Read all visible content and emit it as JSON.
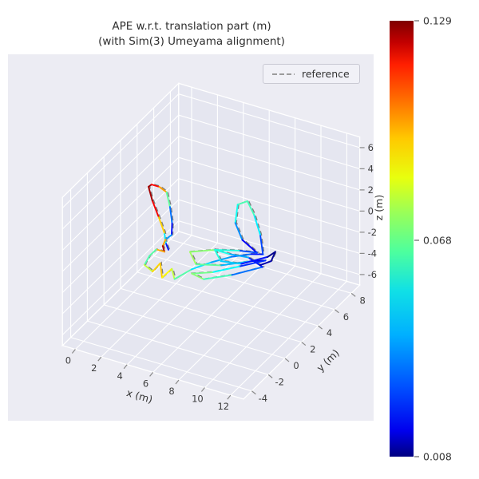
{
  "title": {
    "line1": "APE w.r.t. translation part (m)",
    "line2": "(with Sim(3) Umeyama alignment)"
  },
  "legend": {
    "label": "reference"
  },
  "colorbar": {
    "tick_labels": [
      "0.129",
      "0.068",
      "0.008"
    ],
    "vmin": 0.008,
    "vmax": 0.129,
    "colormap": "jet"
  },
  "style": {
    "axes_bg": "#ececf3",
    "pane_bg": "#e5e6f0",
    "grid_color": "#ffffff",
    "tick_color": "#3d3d3d",
    "reference_color": "#7f7f7f"
  },
  "chart_data": {
    "type": "line",
    "title": "APE w.r.t. translation part (m) (with Sim(3) Umeyama alignment)",
    "legend_position": "upper right",
    "grid": true,
    "view": {
      "elev": 30,
      "azim": -60
    },
    "axes": {
      "x_label": "x (m)",
      "y_label": "y (m)",
      "z_label": "z (m)",
      "x_ticks": [
        0,
        2,
        4,
        6,
        8,
        10,
        12
      ],
      "y_ticks": [
        -4,
        -2,
        0,
        2,
        4,
        6,
        8
      ],
      "z_ticks": [
        6,
        4,
        2,
        0,
        -2,
        -4,
        -6
      ],
      "x_range": [
        -1,
        13
      ],
      "y_range": [
        -5,
        9
      ],
      "z_range": [
        -7,
        7
      ]
    },
    "series": [
      {
        "name": "APE w.r.t. translation part",
        "linestyle": "solid",
        "colored_by": "ape_value",
        "points": [
          [
            3.6,
            0.6,
            -0.6,
            0.02
          ],
          [
            3.2,
            0.9,
            -0.3,
            0.032
          ],
          [
            2.9,
            1.2,
            0.3,
            0.07
          ],
          [
            2.5,
            1.1,
            1.8,
            0.108
          ],
          [
            2.1,
            1.0,
            3.2,
            0.122
          ],
          [
            1.8,
            1.0,
            4.4,
            0.127
          ],
          [
            2.1,
            0.9,
            4.8,
            0.122
          ],
          [
            2.7,
            0.9,
            4.8,
            0.105
          ],
          [
            3.2,
            1.0,
            4.4,
            0.085
          ],
          [
            3.4,
            1.1,
            3.0,
            0.045
          ],
          [
            3.5,
            1.2,
            1.4,
            0.028
          ],
          [
            3.4,
            1.3,
            0.2,
            0.022
          ],
          [
            3.0,
            1.2,
            -0.3,
            0.06
          ],
          [
            2.9,
            1.0,
            -0.8,
            0.128
          ],
          [
            3.1,
            0.9,
            -1.2,
            0.118
          ],
          [
            2.6,
            0.7,
            -1.0,
            0.07
          ],
          [
            2.2,
            0.5,
            -1.6,
            0.058
          ],
          [
            2.0,
            0.2,
            -2.3,
            0.068
          ],
          [
            2.5,
            0.4,
            -2.9,
            0.085
          ],
          [
            2.9,
            0.7,
            -2.2,
            0.092
          ],
          [
            3.3,
            0.3,
            -3.1,
            0.088
          ],
          [
            3.8,
            0.7,
            -2.4,
            0.08
          ],
          [
            4.2,
            0.4,
            -3.0,
            0.072
          ],
          [
            5.0,
            1.2,
            -2.4,
            0.055
          ],
          [
            6.0,
            2.0,
            -2.0,
            0.045
          ],
          [
            7.0,
            2.9,
            -1.8,
            0.04
          ],
          [
            8.0,
            3.7,
            -1.8,
            0.033
          ],
          [
            8.6,
            4.2,
            -2.0,
            0.018
          ],
          [
            8.0,
            4.8,
            -0.8,
            0.045
          ],
          [
            7.2,
            5.3,
            0.4,
            0.058
          ],
          [
            6.5,
            5.6,
            1.2,
            0.065
          ],
          [
            6.0,
            5.2,
            1.0,
            0.06
          ],
          [
            6.2,
            4.6,
            -0.2,
            0.05
          ],
          [
            7.0,
            4.2,
            -1.2,
            0.03
          ],
          [
            8.2,
            4.1,
            -1.9,
            0.014
          ],
          [
            7.2,
            3.5,
            -1.6,
            0.05
          ],
          [
            5.8,
            2.8,
            -1.5,
            0.065
          ],
          [
            4.3,
            2.1,
            -1.7,
            0.075
          ],
          [
            4.9,
            1.9,
            -2.5,
            0.07
          ],
          [
            6.4,
            2.6,
            -2.6,
            0.06
          ],
          [
            8.0,
            3.6,
            -2.4,
            0.03
          ],
          [
            8.8,
            4.2,
            -2.5,
            0.012
          ],
          [
            7.4,
            3.2,
            -2.8,
            0.045
          ],
          [
            5.9,
            2.3,
            -3.2,
            0.062
          ],
          [
            4.7,
            1.7,
            -3.3,
            0.072
          ],
          [
            5.5,
            1.9,
            -3.7,
            0.068
          ],
          [
            7.1,
            2.8,
            -3.4,
            0.055
          ],
          [
            8.7,
            4.0,
            -3.0,
            0.018
          ],
          [
            7.8,
            3.7,
            -2.2,
            0.035
          ],
          [
            6.6,
            3.2,
            -1.9,
            0.052
          ],
          [
            5.7,
            2.9,
            -1.6,
            0.06
          ],
          [
            6.3,
            2.7,
            -2.3,
            0.055
          ],
          [
            7.5,
            3.3,
            -2.6,
            0.04
          ],
          [
            8.9,
            4.3,
            -2.2,
            0.01
          ],
          [
            9.3,
            4.6,
            -1.8,
            0.009
          ],
          [
            9.1,
            4.4,
            -2.6,
            0.012
          ],
          [
            8.5,
            4.0,
            -2.9,
            0.015
          ]
        ]
      },
      {
        "name": "reference",
        "linestyle": "dashed",
        "color": "#7f7f7f",
        "points": [
          [
            3.75,
            0.5,
            -0.42
          ],
          [
            3.35,
            0.8,
            -0.12
          ],
          [
            3.05,
            1.1,
            0.48
          ],
          [
            2.65,
            1.0,
            1.98
          ],
          [
            2.25,
            0.9,
            3.38
          ],
          [
            1.95,
            0.9,
            4.58
          ],
          [
            2.25,
            0.8,
            4.98
          ],
          [
            2.85,
            0.8,
            4.98
          ],
          [
            3.35,
            0.9,
            4.58
          ],
          [
            3.55,
            1.0,
            3.18
          ],
          [
            3.65,
            1.1,
            1.58
          ],
          [
            3.55,
            1.2,
            0.38
          ],
          [
            3.15,
            1.1,
            -0.12
          ],
          [
            3.05,
            0.9,
            -0.62
          ],
          [
            3.25,
            0.8,
            -1.02
          ],
          [
            2.75,
            0.6,
            -0.82
          ],
          [
            2.35,
            0.4,
            -1.42
          ],
          [
            2.15,
            0.1,
            -2.12
          ],
          [
            2.65,
            0.3,
            -2.72
          ],
          [
            3.05,
            0.6,
            -2.02
          ],
          [
            3.45,
            0.2,
            -2.92
          ],
          [
            3.95,
            0.6,
            -2.22
          ],
          [
            4.35,
            0.3,
            -2.82
          ],
          [
            5.15,
            1.1,
            -2.22
          ],
          [
            6.15,
            1.9,
            -1.82
          ],
          [
            7.15,
            2.8,
            -1.62
          ],
          [
            8.15,
            3.6,
            -1.62
          ],
          [
            8.75,
            4.1,
            -1.82
          ],
          [
            8.15,
            4.7,
            -0.62
          ],
          [
            7.35,
            5.2,
            0.58
          ],
          [
            6.65,
            5.5,
            1.38
          ],
          [
            6.15,
            5.1,
            1.18
          ],
          [
            6.35,
            4.5,
            -0.02
          ],
          [
            7.15,
            4.1,
            -1.02
          ],
          [
            8.35,
            4.0,
            -1.72
          ],
          [
            7.35,
            3.4,
            -1.42
          ],
          [
            5.95,
            2.7,
            -1.32
          ],
          [
            4.45,
            2.0,
            -1.52
          ],
          [
            5.05,
            1.8,
            -2.32
          ],
          [
            6.55,
            2.5,
            -2.42
          ],
          [
            8.15,
            3.5,
            -2.22
          ],
          [
            8.95,
            4.1,
            -2.32
          ],
          [
            7.55,
            3.1,
            -2.62
          ],
          [
            6.05,
            2.2,
            -3.02
          ],
          [
            4.85,
            1.6,
            -3.12
          ],
          [
            5.65,
            1.8,
            -3.52
          ],
          [
            7.25,
            2.7,
            -3.22
          ],
          [
            8.85,
            3.9,
            -2.82
          ],
          [
            7.95,
            3.6,
            -2.02
          ],
          [
            6.75,
            3.1,
            -1.72
          ],
          [
            5.85,
            2.8,
            -1.42
          ],
          [
            6.45,
            2.6,
            -2.12
          ],
          [
            7.65,
            3.2,
            -2.42
          ],
          [
            9.05,
            4.2,
            -2.02
          ],
          [
            9.45,
            4.5,
            -1.62
          ],
          [
            9.25,
            4.3,
            -2.42
          ],
          [
            8.65,
            3.9,
            -2.72
          ]
        ]
      }
    ]
  }
}
